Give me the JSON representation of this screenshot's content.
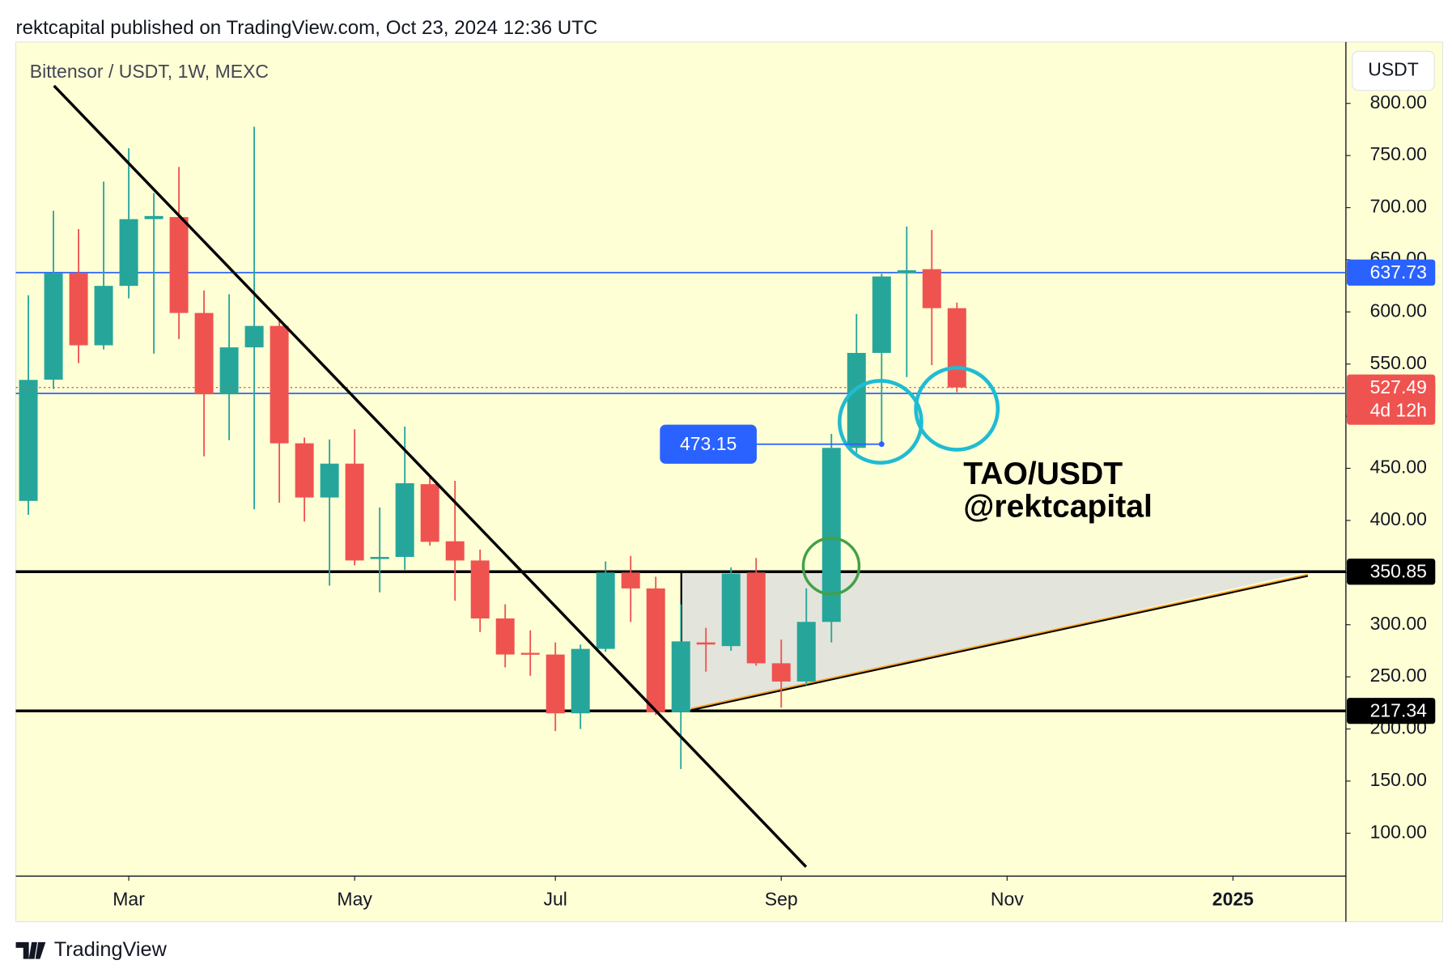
{
  "header": "rektcapital published on TradingView.com, Oct 23, 2024 12:36 UTC",
  "brand": "TradingView",
  "chart_data": {
    "type": "candlestick",
    "title": "Bittensor / USDT, 1W, MEXC",
    "currency": "USDT",
    "up_color": "#26a69a",
    "down_color": "#ef5350",
    "open": [
      418.75,
      535,
      637.5,
      568,
      625,
      689,
      691,
      599,
      521,
      566,
      586.6,
      474,
      422,
      454.5,
      363,
      365,
      434.8,
      380,
      361.6,
      306,
      273,
      271.4,
      215,
      276.8,
      350,
      334.8,
      216,
      283,
      279.5,
      350,
      263,
      245.5,
      302.7,
      469.6,
      560.7,
      637.5,
      641,
      603.6
    ],
    "high": [
      616,
      697,
      679.5,
      725,
      757,
      714,
      739,
      620.5,
      617,
      777.7,
      594,
      479.5,
      477.7,
      487.5,
      412.5,
      490,
      443.75,
      438,
      372,
      319.6,
      294.6,
      283,
      281,
      360.7,
      366,
      346,
      319.6,
      297,
      355,
      364,
      285.7,
      334.8,
      483,
      598,
      636.6,
      682,
      678.6,
      609
    ],
    "low": [
      405.4,
      526,
      551,
      564,
      613,
      560,
      574,
      461.6,
      477,
      410.7,
      417,
      399,
      337.5,
      357,
      331,
      352.7,
      376,
      323,
      293,
      259,
      251,
      198,
      200,
      274,
      302.7,
      213.4,
      161.6,
      255,
      275,
      260.7,
      220.5,
      242,
      283,
      465,
      473.15,
      537.5,
      549,
      523
    ],
    "close": [
      534.8,
      637.5,
      568,
      625,
      689,
      692,
      599,
      521,
      566,
      586.6,
      474,
      422,
      454.5,
      361.6,
      365,
      435.7,
      379.5,
      361.6,
      306,
      271.4,
      271.4,
      215,
      276.8,
      350,
      334.8,
      216,
      284,
      281,
      349,
      263,
      245.5,
      302.7,
      469.6,
      560.7,
      634,
      640,
      603.6,
      527.49
    ],
    "xlim": [
      -0.5,
      52.5
    ],
    "xticks": [
      {
        "value": 4,
        "label": "Mar"
      },
      {
        "value": 13,
        "label": "May"
      },
      {
        "value": 21,
        "label": "Jul"
      },
      {
        "value": 30,
        "label": "Sep"
      },
      {
        "value": 39,
        "label": "Nov"
      },
      {
        "value": 48,
        "label": "2025"
      }
    ],
    "ylim": [
      58.9,
      858.9
    ],
    "yticks": [
      {
        "value": 100,
        "label": "100.00"
      },
      {
        "value": 150,
        "label": "150.00"
      },
      {
        "value": 200,
        "label": "200.00"
      },
      {
        "value": 250,
        "label": "250.00"
      },
      {
        "value": 300,
        "label": "300.00"
      },
      {
        "value": 350,
        "label": "350.00"
      },
      {
        "value": 400,
        "label": "400.00"
      },
      {
        "value": 450,
        "label": "450.00"
      },
      {
        "value": 500,
        "label": "500.00"
      },
      {
        "value": 550,
        "label": "550.00"
      },
      {
        "value": 600,
        "label": "600.00"
      },
      {
        "value": 650,
        "label": "650.00"
      },
      {
        "value": 700,
        "label": "700.00"
      },
      {
        "value": 750,
        "label": "750.00"
      },
      {
        "value": 800,
        "label": "800.00"
      }
    ],
    "price_lines": [
      {
        "value": 637.73,
        "color": "#2962ff"
      },
      {
        "value": 521.83,
        "color": "#2962ff"
      },
      {
        "value": 350.85,
        "color": "#000000"
      },
      {
        "value": 217.34,
        "color": "#000000"
      }
    ],
    "last_price": 527.49,
    "countdown": "4d 12h",
    "low_marker": 473.15,
    "annotation": [
      "TAO/USDT",
      "@rektcapital"
    ]
  }
}
